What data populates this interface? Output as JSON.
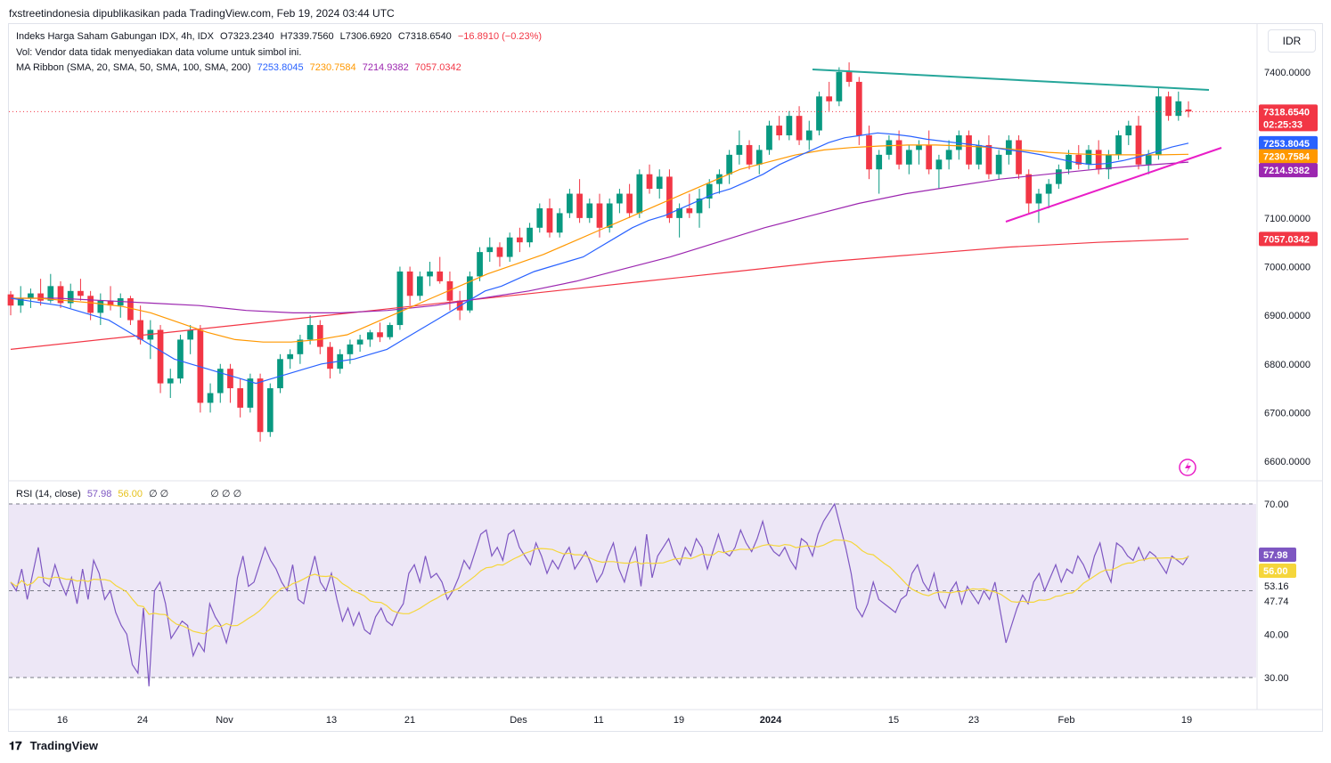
{
  "publisher_line": "fxstreetindonesia dipublikasikan pada TradingView.com, Feb 19, 2024 03:44 UTC",
  "currency": "IDR",
  "footer_brand": "TradingView",
  "legend": {
    "symbol": "Indeks Harga Saham Gabungan IDX, 4h, IDX",
    "open": "O7323.2340",
    "high": "H7339.7560",
    "low": "L7306.6920",
    "close": "C7318.6540",
    "change": "−16.8910 (−0.23%)",
    "volume_note": "Vol: Vendor data tidak menyediakan data volume untuk simbol ini.",
    "ma_title": "MA Ribbon (SMA, 20, SMA, 50, SMA, 100, SMA, 200)",
    "ma_values": [
      "7253.8045",
      "7230.7584",
      "7214.9382",
      "7057.0342"
    ],
    "rsi_title": "RSI (14, close)",
    "rsi_value": "57.98",
    "rsi_ma_value": "56.00",
    "rsi_extra": "∅ ∅",
    "rsi_extra2": "∅ ∅ ∅"
  },
  "colors": {
    "up": "#089981",
    "down": "#f23645",
    "sma20": "#2962ff",
    "sma50": "#ff9800",
    "sma100": "#9c27b0",
    "sma200": "#f23645",
    "trend_top": "#26a69a",
    "trend_bottom": "#e91ec7",
    "rsi": "#7e57c2",
    "rsi_ma": "#f5d63b",
    "rsi_band": "#ede7f6"
  },
  "chart_data": {
    "type": "candlestick",
    "price_axis": {
      "ticks": [
        6600,
        6700,
        6800,
        6900,
        7000,
        7100,
        7400
      ],
      "tick_labels": [
        "6600.0000",
        "6700.0000",
        "6800.0000",
        "6900.0000",
        "7000.0000",
        "7100.0000",
        "7400.0000"
      ]
    },
    "price_tags": [
      {
        "label": "7318.6540",
        "sub": "02:25:33",
        "value": 7318.654,
        "color": "#f23645"
      },
      {
        "label": "7253.8045",
        "value": 7253.8045,
        "color": "#2962ff"
      },
      {
        "label": "7230.7584",
        "value": 7230.7584,
        "color": "#ff9800"
      },
      {
        "label": "7214.9382",
        "value": 7214.9382,
        "color": "#9c27b0"
      },
      {
        "label": "7057.0342",
        "value": 7057.0342,
        "color": "#f23645"
      }
    ],
    "x_labels": [
      "16",
      "24",
      "Nov",
      "13",
      "21",
      "Des",
      "11",
      "19",
      "2024",
      "15",
      "23",
      "Feb",
      "19"
    ],
    "rsi_axis": {
      "ticks": [
        30,
        40,
        70
      ],
      "tick_labels": [
        "30.00",
        "40.00",
        "70.00"
      ],
      "band": [
        30,
        70
      ],
      "mid": 50,
      "side_labels": [
        "53.16",
        "47.74"
      ]
    },
    "rsi_tags": [
      {
        "label": "57.98",
        "value": 57.98,
        "color": "#7e57c2"
      },
      {
        "label": "56.00",
        "value": 56.0,
        "color": "#f5d63b"
      }
    ],
    "candles": [
      [
        6943,
        6950,
        6900,
        6920
      ],
      [
        6920,
        6960,
        6905,
        6935
      ],
      [
        6935,
        6955,
        6915,
        6945
      ],
      [
        6945,
        6975,
        6920,
        6930
      ],
      [
        6930,
        6985,
        6925,
        6960
      ],
      [
        6960,
        6970,
        6915,
        6925
      ],
      [
        6925,
        6965,
        6915,
        6950
      ],
      [
        6950,
        6975,
        6930,
        6940
      ],
      [
        6940,
        6950,
        6890,
        6905
      ],
      [
        6905,
        6945,
        6880,
        6930
      ],
      [
        6930,
        6960,
        6910,
        6920
      ],
      [
        6920,
        6945,
        6895,
        6935
      ],
      [
        6935,
        6940,
        6880,
        6890
      ],
      [
        6890,
        6920,
        6840,
        6850
      ],
      [
        6850,
        6890,
        6810,
        6870
      ],
      [
        6870,
        6880,
        6740,
        6760
      ],
      [
        6760,
        6790,
        6730,
        6770
      ],
      [
        6770,
        6860,
        6760,
        6850
      ],
      [
        6850,
        6880,
        6820,
        6870
      ],
      [
        6870,
        6880,
        6700,
        6720
      ],
      [
        6720,
        6760,
        6700,
        6740
      ],
      [
        6740,
        6800,
        6720,
        6790
      ],
      [
        6790,
        6800,
        6720,
        6750
      ],
      [
        6750,
        6770,
        6690,
        6710
      ],
      [
        6710,
        6780,
        6700,
        6770
      ],
      [
        6770,
        6780,
        6640,
        6660
      ],
      [
        6660,
        6760,
        6650,
        6750
      ],
      [
        6750,
        6820,
        6740,
        6810
      ],
      [
        6810,
        6830,
        6790,
        6820
      ],
      [
        6820,
        6860,
        6800,
        6850
      ],
      [
        6850,
        6900,
        6840,
        6880
      ],
      [
        6880,
        6890,
        6820,
        6835
      ],
      [
        6835,
        6845,
        6770,
        6790
      ],
      [
        6790,
        6830,
        6780,
        6820
      ],
      [
        6820,
        6850,
        6800,
        6840
      ],
      [
        6840,
        6860,
        6825,
        6850
      ],
      [
        6850,
        6870,
        6835,
        6865
      ],
      [
        6865,
        6885,
        6845,
        6855
      ],
      [
        6855,
        6885,
        6850,
        6880
      ],
      [
        6880,
        7000,
        6870,
        6990
      ],
      [
        6990,
        7000,
        6920,
        6940
      ],
      [
        6940,
        6990,
        6930,
        6980
      ],
      [
        6980,
        7010,
        6960,
        6990
      ],
      [
        6990,
        7020,
        6965,
        6970
      ],
      [
        6970,
        6990,
        6910,
        6930
      ],
      [
        6930,
        6950,
        6890,
        6910
      ],
      [
        6910,
        6990,
        6905,
        6980
      ],
      [
        6980,
        7040,
        6970,
        7030
      ],
      [
        7030,
        7060,
        7010,
        7040
      ],
      [
        7040,
        7050,
        7000,
        7020
      ],
      [
        7020,
        7070,
        7010,
        7060
      ],
      [
        7060,
        7080,
        7030,
        7050
      ],
      [
        7050,
        7090,
        7040,
        7080
      ],
      [
        7080,
        7130,
        7070,
        7120
      ],
      [
        7120,
        7140,
        7060,
        7070
      ],
      [
        7070,
        7120,
        7060,
        7110
      ],
      [
        7110,
        7160,
        7100,
        7150
      ],
      [
        7150,
        7180,
        7090,
        7100
      ],
      [
        7100,
        7140,
        7090,
        7130
      ],
      [
        7130,
        7150,
        7060,
        7080
      ],
      [
        7080,
        7140,
        7070,
        7130
      ],
      [
        7130,
        7160,
        7110,
        7150
      ],
      [
        7150,
        7170,
        7100,
        7110
      ],
      [
        7110,
        7200,
        7100,
        7190
      ],
      [
        7190,
        7210,
        7150,
        7160
      ],
      [
        7160,
        7200,
        7140,
        7185
      ],
      [
        7185,
        7200,
        7090,
        7100
      ],
      [
        7100,
        7130,
        7060,
        7120
      ],
      [
        7120,
        7150,
        7100,
        7110
      ],
      [
        7110,
        7160,
        7080,
        7140
      ],
      [
        7140,
        7180,
        7120,
        7170
      ],
      [
        7170,
        7200,
        7150,
        7190
      ],
      [
        7190,
        7240,
        7170,
        7230
      ],
      [
        7230,
        7280,
        7210,
        7250
      ],
      [
        7250,
        7260,
        7200,
        7210
      ],
      [
        7210,
        7250,
        7190,
        7240
      ],
      [
        7240,
        7300,
        7230,
        7290
      ],
      [
        7290,
        7310,
        7260,
        7270
      ],
      [
        7270,
        7320,
        7260,
        7310
      ],
      [
        7310,
        7330,
        7250,
        7260
      ],
      [
        7260,
        7300,
        7240,
        7280
      ],
      [
        7280,
        7360,
        7270,
        7350
      ],
      [
        7350,
        7380,
        7320,
        7340
      ],
      [
        7340,
        7410,
        7330,
        7400
      ],
      [
        7400,
        7420,
        7370,
        7380
      ],
      [
        7380,
        7390,
        7250,
        7270
      ],
      [
        7270,
        7290,
        7180,
        7200
      ],
      [
        7200,
        7240,
        7150,
        7230
      ],
      [
        7230,
        7270,
        7220,
        7260
      ],
      [
        7260,
        7280,
        7200,
        7210
      ],
      [
        7210,
        7250,
        7190,
        7240
      ],
      [
        7240,
        7260,
        7210,
        7250
      ],
      [
        7250,
        7280,
        7190,
        7200
      ],
      [
        7200,
        7230,
        7160,
        7220
      ],
      [
        7220,
        7260,
        7200,
        7240
      ],
      [
        7240,
        7280,
        7220,
        7270
      ],
      [
        7270,
        7280,
        7200,
        7210
      ],
      [
        7210,
        7260,
        7200,
        7250
      ],
      [
        7250,
        7270,
        7180,
        7190
      ],
      [
        7190,
        7240,
        7180,
        7230
      ],
      [
        7230,
        7270,
        7210,
        7260
      ],
      [
        7260,
        7270,
        7180,
        7190
      ],
      [
        7190,
        7200,
        7110,
        7130
      ],
      [
        7130,
        7160,
        7090,
        7150
      ],
      [
        7150,
        7180,
        7120,
        7170
      ],
      [
        7170,
        7210,
        7160,
        7200
      ],
      [
        7200,
        7240,
        7190,
        7230
      ],
      [
        7230,
        7250,
        7200,
        7210
      ],
      [
        7210,
        7250,
        7200,
        7240
      ],
      [
        7240,
        7260,
        7190,
        7200
      ],
      [
        7200,
        7240,
        7180,
        7230
      ],
      [
        7230,
        7280,
        7220,
        7270
      ],
      [
        7270,
        7300,
        7250,
        7290
      ],
      [
        7290,
        7310,
        7200,
        7210
      ],
      [
        7210,
        7240,
        7190,
        7230
      ],
      [
        7230,
        7370,
        7220,
        7350
      ],
      [
        7350,
        7360,
        7300,
        7310
      ],
      [
        7310,
        7360,
        7300,
        7340
      ],
      [
        7323,
        7340,
        7307,
        7319
      ]
    ],
    "sma20": [
      6935,
      6930,
      6925,
      6920,
      6910,
      6900,
      6890,
      6870,
      6850,
      6830,
      6810,
      6800,
      6790,
      6780,
      6770,
      6760,
      6770,
      6780,
      6790,
      6800,
      6805,
      6810,
      6820,
      6830,
      6850,
      6870,
      6890,
      6910,
      6930,
      6950,
      6960,
      6975,
      6990,
      7000,
      7010,
      7020,
      7040,
      7060,
      7080,
      7095,
      7105,
      7120,
      7135,
      7150,
      7160,
      7175,
      7190,
      7210,
      7225,
      7240,
      7255,
      7265,
      7270,
      7275,
      7272,
      7268,
      7262,
      7258,
      7254,
      7250,
      7245,
      7240,
      7236,
      7230,
      7222,
      7215,
      7210,
      7212,
      7218,
      7226,
      7236,
      7246,
      7254
    ],
    "sma50": [
      6935,
      6935,
      6930,
      6925,
      6918,
      6905,
      6885,
      6865,
      6850,
      6845,
      6845,
      6850,
      6860,
      6885,
      6910,
      6935,
      6960,
      6985,
      7005,
      7025,
      7050,
      7075,
      7100,
      7125,
      7150,
      7175,
      7200,
      7215,
      7230,
      7240,
      7245,
      7248,
      7250,
      7250,
      7248,
      7245,
      7240,
      7235,
      7232,
      7230,
      7230,
      7230,
      7231
    ],
    "sma100": [
      6935,
      6935,
      6930,
      6925,
      6920,
      6910,
      6905,
      6905,
      6910,
      6920,
      6935,
      6950,
      6970,
      6995,
      7020,
      7050,
      7080,
      7105,
      7130,
      7150,
      7165,
      7180,
      7190,
      7200,
      7208,
      7215
    ],
    "sma200": [
      6830,
      6850,
      6870,
      6890,
      6910,
      6930,
      6950,
      6970,
      6990,
      7010,
      7025,
      7040,
      7050,
      7057
    ],
    "rsi": [
      52,
      50,
      55,
      48,
      54,
      60,
      52,
      51,
      56,
      52,
      49,
      53,
      47,
      55,
      48,
      57,
      54,
      48,
      50,
      45,
      42,
      40,
      33,
      31,
      46,
      28,
      50,
      52,
      47,
      39,
      41,
      43,
      42,
      35,
      38,
      36,
      47,
      44,
      42,
      38,
      43,
      53,
      58,
      51,
      52,
      56,
      60,
      57,
      55,
      52,
      50,
      56,
      48,
      47,
      53,
      58,
      52,
      50,
      54,
      48,
      43,
      46,
      42,
      45,
      41,
      40,
      44,
      46,
      43,
      42,
      45,
      47,
      54,
      56,
      52,
      58,
      53,
      54,
      52,
      48,
      50,
      53,
      57,
      55,
      59,
      63,
      64,
      58,
      60,
      57,
      63,
      64,
      60,
      58,
      56,
      61,
      58,
      54,
      57,
      55,
      58,
      60,
      55,
      57,
      59,
      56,
      52,
      54,
      58,
      61,
      55,
      52,
      57,
      60,
      51,
      63,
      53,
      58,
      60,
      62,
      58,
      56,
      60,
      58,
      62,
      60,
      55,
      59,
      63,
      59,
      58,
      60,
      64,
      61,
      59,
      62,
      66,
      61,
      59,
      58,
      60,
      57,
      55,
      62,
      61,
      58,
      63,
      66,
      68,
      70,
      65,
      60,
      54,
      46,
      44,
      47,
      52,
      48,
      47,
      46,
      45,
      48,
      49,
      54,
      56,
      52,
      50,
      54,
      48,
      46,
      50,
      52,
      47,
      51,
      49,
      47,
      50,
      48,
      52,
      45,
      38,
      42,
      46,
      49,
      47,
      52,
      54,
      50,
      53,
      56,
      52,
      55,
      54,
      58,
      56,
      53,
      58,
      61,
      55,
      52,
      61,
      60,
      58,
      57,
      60,
      57,
      59,
      58,
      56,
      54,
      58,
      57,
      56,
      58
    ]
  }
}
